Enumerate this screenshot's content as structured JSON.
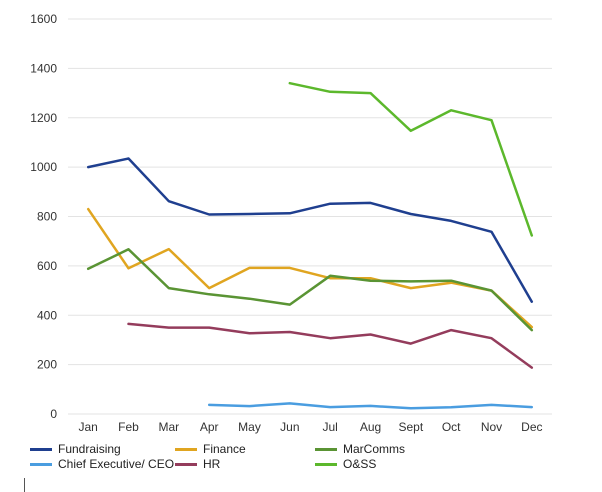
{
  "chart_data": {
    "type": "line",
    "title": "",
    "xlabel": "",
    "ylabel": "",
    "categories": [
      "Jan",
      "Feb",
      "Mar",
      "Apr",
      "May",
      "Jun",
      "Jul",
      "Aug",
      "Sept",
      "Oct",
      "Nov",
      "Dec"
    ],
    "ylim": [
      0,
      1600
    ],
    "yticks": [
      0,
      200,
      400,
      600,
      800,
      1000,
      1200,
      1400,
      1600
    ],
    "grid": "horizontal",
    "legend_position": "bottom",
    "series": [
      {
        "name": "Fundraising",
        "color": "#1f3f8f",
        "values": [
          1000,
          1035,
          862,
          808,
          810,
          813,
          852,
          855,
          810,
          782,
          738,
          455
        ]
      },
      {
        "name": "Finance",
        "color": "#e0a520",
        "values": [
          830,
          590,
          668,
          510,
          592,
          592,
          550,
          550,
          510,
          532,
          500,
          352
        ]
      },
      {
        "name": "MarComms",
        "color": "#5a9434",
        "values": [
          588,
          667,
          510,
          485,
          467,
          443,
          560,
          540,
          537,
          540,
          500,
          340
        ]
      },
      {
        "name": "Chief Executive/ CEO",
        "color": "#4a9de0",
        "values": [
          null,
          null,
          null,
          37,
          32,
          43,
          28,
          33,
          23,
          27,
          37,
          28
        ]
      },
      {
        "name": "HR",
        "color": "#943c5c",
        "values": [
          null,
          365,
          350,
          350,
          327,
          332,
          307,
          322,
          285,
          340,
          307,
          188
        ]
      },
      {
        "name": "O&SS",
        "color": "#5cb82c",
        "values": [
          null,
          null,
          null,
          null,
          null,
          1340,
          1305,
          1300,
          1147,
          1230,
          1190,
          723
        ]
      }
    ]
  }
}
